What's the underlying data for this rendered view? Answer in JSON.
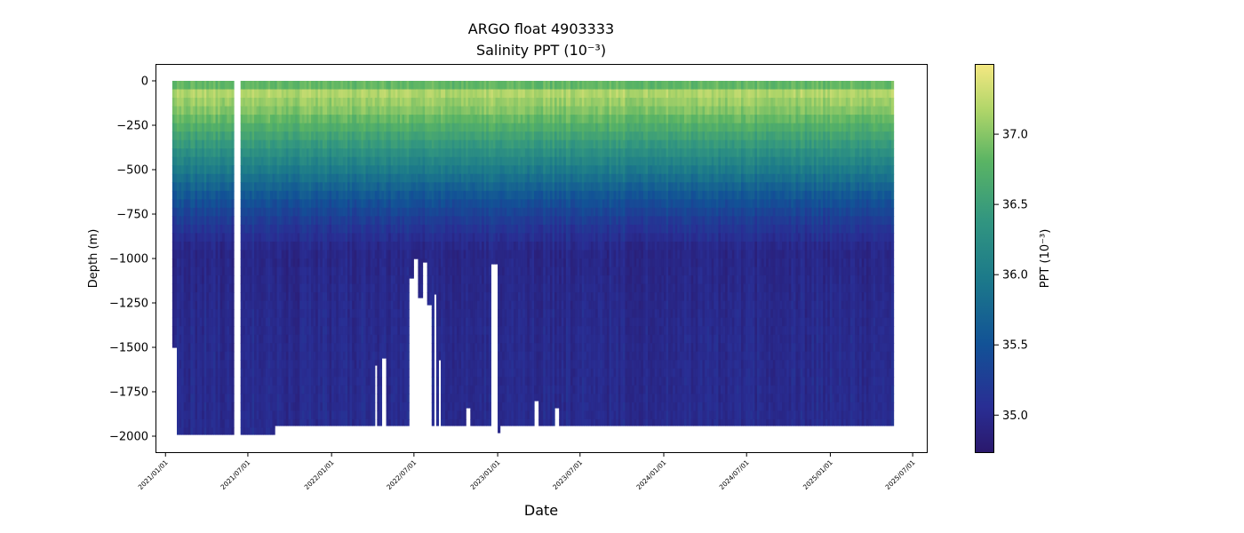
{
  "chart_data": {
    "type": "heatmap",
    "title": "ARGO float 4903333",
    "subtitle": "Salinity PPT (10⁻³)",
    "xlabel": "Date",
    "ylabel": "Depth (m)",
    "x_range": [
      "2020-12-12",
      "2025-08-01"
    ],
    "y_range": [
      -2090,
      90
    ],
    "x_ticks": [
      "2021/01/01",
      "2021/07/01",
      "2022/01/01",
      "2022/07/01",
      "2023/01/01",
      "2023/07/01",
      "2024/01/01",
      "2024/07/01",
      "2025/01/01",
      "2025/07/01"
    ],
    "y_ticks": [
      0,
      -250,
      -500,
      -750,
      -1000,
      -1250,
      -1500,
      -1750,
      -2000
    ],
    "colorbar": {
      "label": "PPT (10⁻³)",
      "range": [
        34.73,
        37.5
      ],
      "ticks": [
        35.0,
        35.5,
        36.0,
        36.5,
        37.0
      ]
    },
    "profiles": {
      "start_date": "2021-01-19",
      "end_date": "2025-05-20",
      "interval_days": 5,
      "data_gaps": [
        [
          "2021-06-03",
          "2021-06-13"
        ]
      ],
      "default_max_depth": -1940,
      "max_depth_overrides": [
        {
          "from": "2021-01-19",
          "to": "2021-01-24",
          "max_depth": -1500
        },
        {
          "from": "2021-01-29",
          "to": "2021-06-01",
          "max_depth": -1990
        },
        {
          "from": "2021-06-14",
          "to": "2021-08-30",
          "max_depth": -1990
        },
        {
          "from": "2022-04-08",
          "to": "2022-04-12",
          "max_depth": -1600
        },
        {
          "from": "2022-04-23",
          "to": "2022-05-02",
          "max_depth": -1560
        },
        {
          "from": "2022-06-22",
          "to": "2022-06-30",
          "max_depth": -1110
        },
        {
          "from": "2022-07-02",
          "to": "2022-07-10",
          "max_depth": -1000
        },
        {
          "from": "2022-07-12",
          "to": "2022-07-20",
          "max_depth": -1220
        },
        {
          "from": "2022-07-22",
          "to": "2022-07-31",
          "max_depth": -1020
        },
        {
          "from": "2022-08-02",
          "to": "2022-08-11",
          "max_depth": -1260
        },
        {
          "from": "2022-08-13",
          "to": "2022-08-21",
          "max_depth": -1200
        },
        {
          "from": "2022-08-23",
          "to": "2022-08-31",
          "max_depth": -1570
        },
        {
          "from": "2022-10-23",
          "to": "2022-11-01",
          "max_depth": -1840
        },
        {
          "from": "2022-12-18",
          "to": "2022-12-31",
          "max_depth": -1030
        },
        {
          "from": "2023-01-01",
          "to": "2023-01-08",
          "max_depth": -1980
        },
        {
          "from": "2023-03-21",
          "to": "2023-03-31",
          "max_depth": -1800
        },
        {
          "from": "2023-05-05",
          "to": "2023-05-14",
          "max_depth": -1840
        }
      ]
    }
  }
}
